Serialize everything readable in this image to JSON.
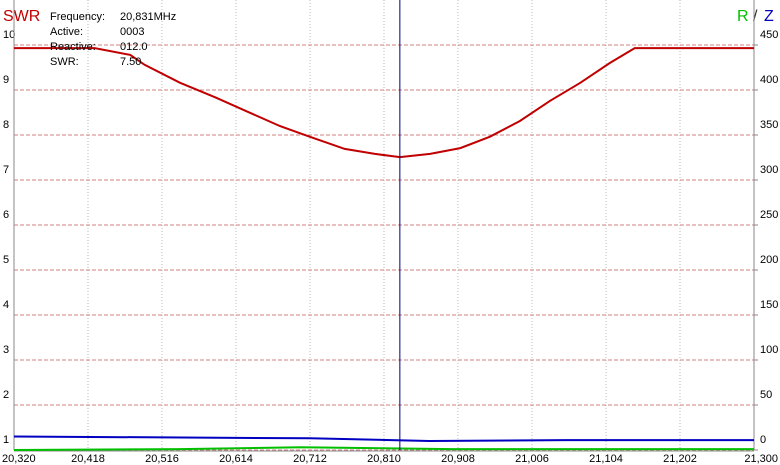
{
  "chart_data": {
    "type": "line",
    "title": "SWR",
    "y2_title_parts": [
      "R",
      "Z"
    ],
    "xlim": [
      20320,
      21300
    ],
    "xticks": [
      {
        "value": 20320,
        "label": "20,320"
      },
      {
        "value": 20418,
        "label": "20,418"
      },
      {
        "value": 20516,
        "label": "20,516"
      },
      {
        "value": 20614,
        "label": "20,614"
      },
      {
        "value": 20712,
        "label": "20,712"
      },
      {
        "value": 20810,
        "label": "20,810"
      },
      {
        "value": 20908,
        "label": "20,908"
      },
      {
        "value": 21006,
        "label": "21,006"
      },
      {
        "value": 21104,
        "label": "21,104"
      },
      {
        "value": 21202,
        "label": "21,202"
      },
      {
        "value": 21300,
        "label": "21,300"
      }
    ],
    "ylim": [
      1,
      10
    ],
    "yticks": [
      1,
      2,
      3,
      4,
      5,
      6,
      7,
      8,
      9,
      10
    ],
    "y2lim": [
      0,
      450
    ],
    "y2ticks": [
      0,
      50,
      100,
      150,
      200,
      250,
      300,
      350,
      400,
      450
    ],
    "grid": true,
    "cursor": {
      "x": 20831,
      "color": "#000080"
    },
    "readout": [
      [
        "Frequency:",
        "20,831MHz"
      ],
      [
        "Active:",
        "0003"
      ],
      [
        "Reactive:",
        "012.0"
      ],
      [
        "SWR:",
        "7.50"
      ]
    ],
    "series": [
      {
        "name": "SWR",
        "color": "#c00000",
        "x": [
          20320,
          20427,
          20474,
          20493,
          20540,
          20586,
          20633,
          20672,
          20712,
          20758,
          20798,
          20831,
          20871,
          20911,
          20950,
          20990,
          21030,
          21070,
          21109,
          21142,
          21300
        ],
        "values": [
          9.93,
          9.93,
          9.78,
          9.56,
          9.16,
          8.84,
          8.49,
          8.2,
          7.96,
          7.69,
          7.58,
          7.51,
          7.58,
          7.71,
          7.96,
          8.31,
          8.76,
          9.16,
          9.6,
          9.93,
          9.93
        ]
      },
      {
        "name": "R",
        "color": "#00c000",
        "axis": "y2",
        "x": [
          20320,
          20540,
          20700,
          20900,
          21300
        ],
        "values": [
          0,
          1,
          3,
          1,
          1
        ]
      },
      {
        "name": "Z",
        "color": "#0000c0",
        "axis": "y2",
        "x": [
          20320,
          20712,
          20870,
          21050,
          21300
        ],
        "values": [
          15,
          13,
          10,
          11,
          11
        ]
      }
    ]
  }
}
